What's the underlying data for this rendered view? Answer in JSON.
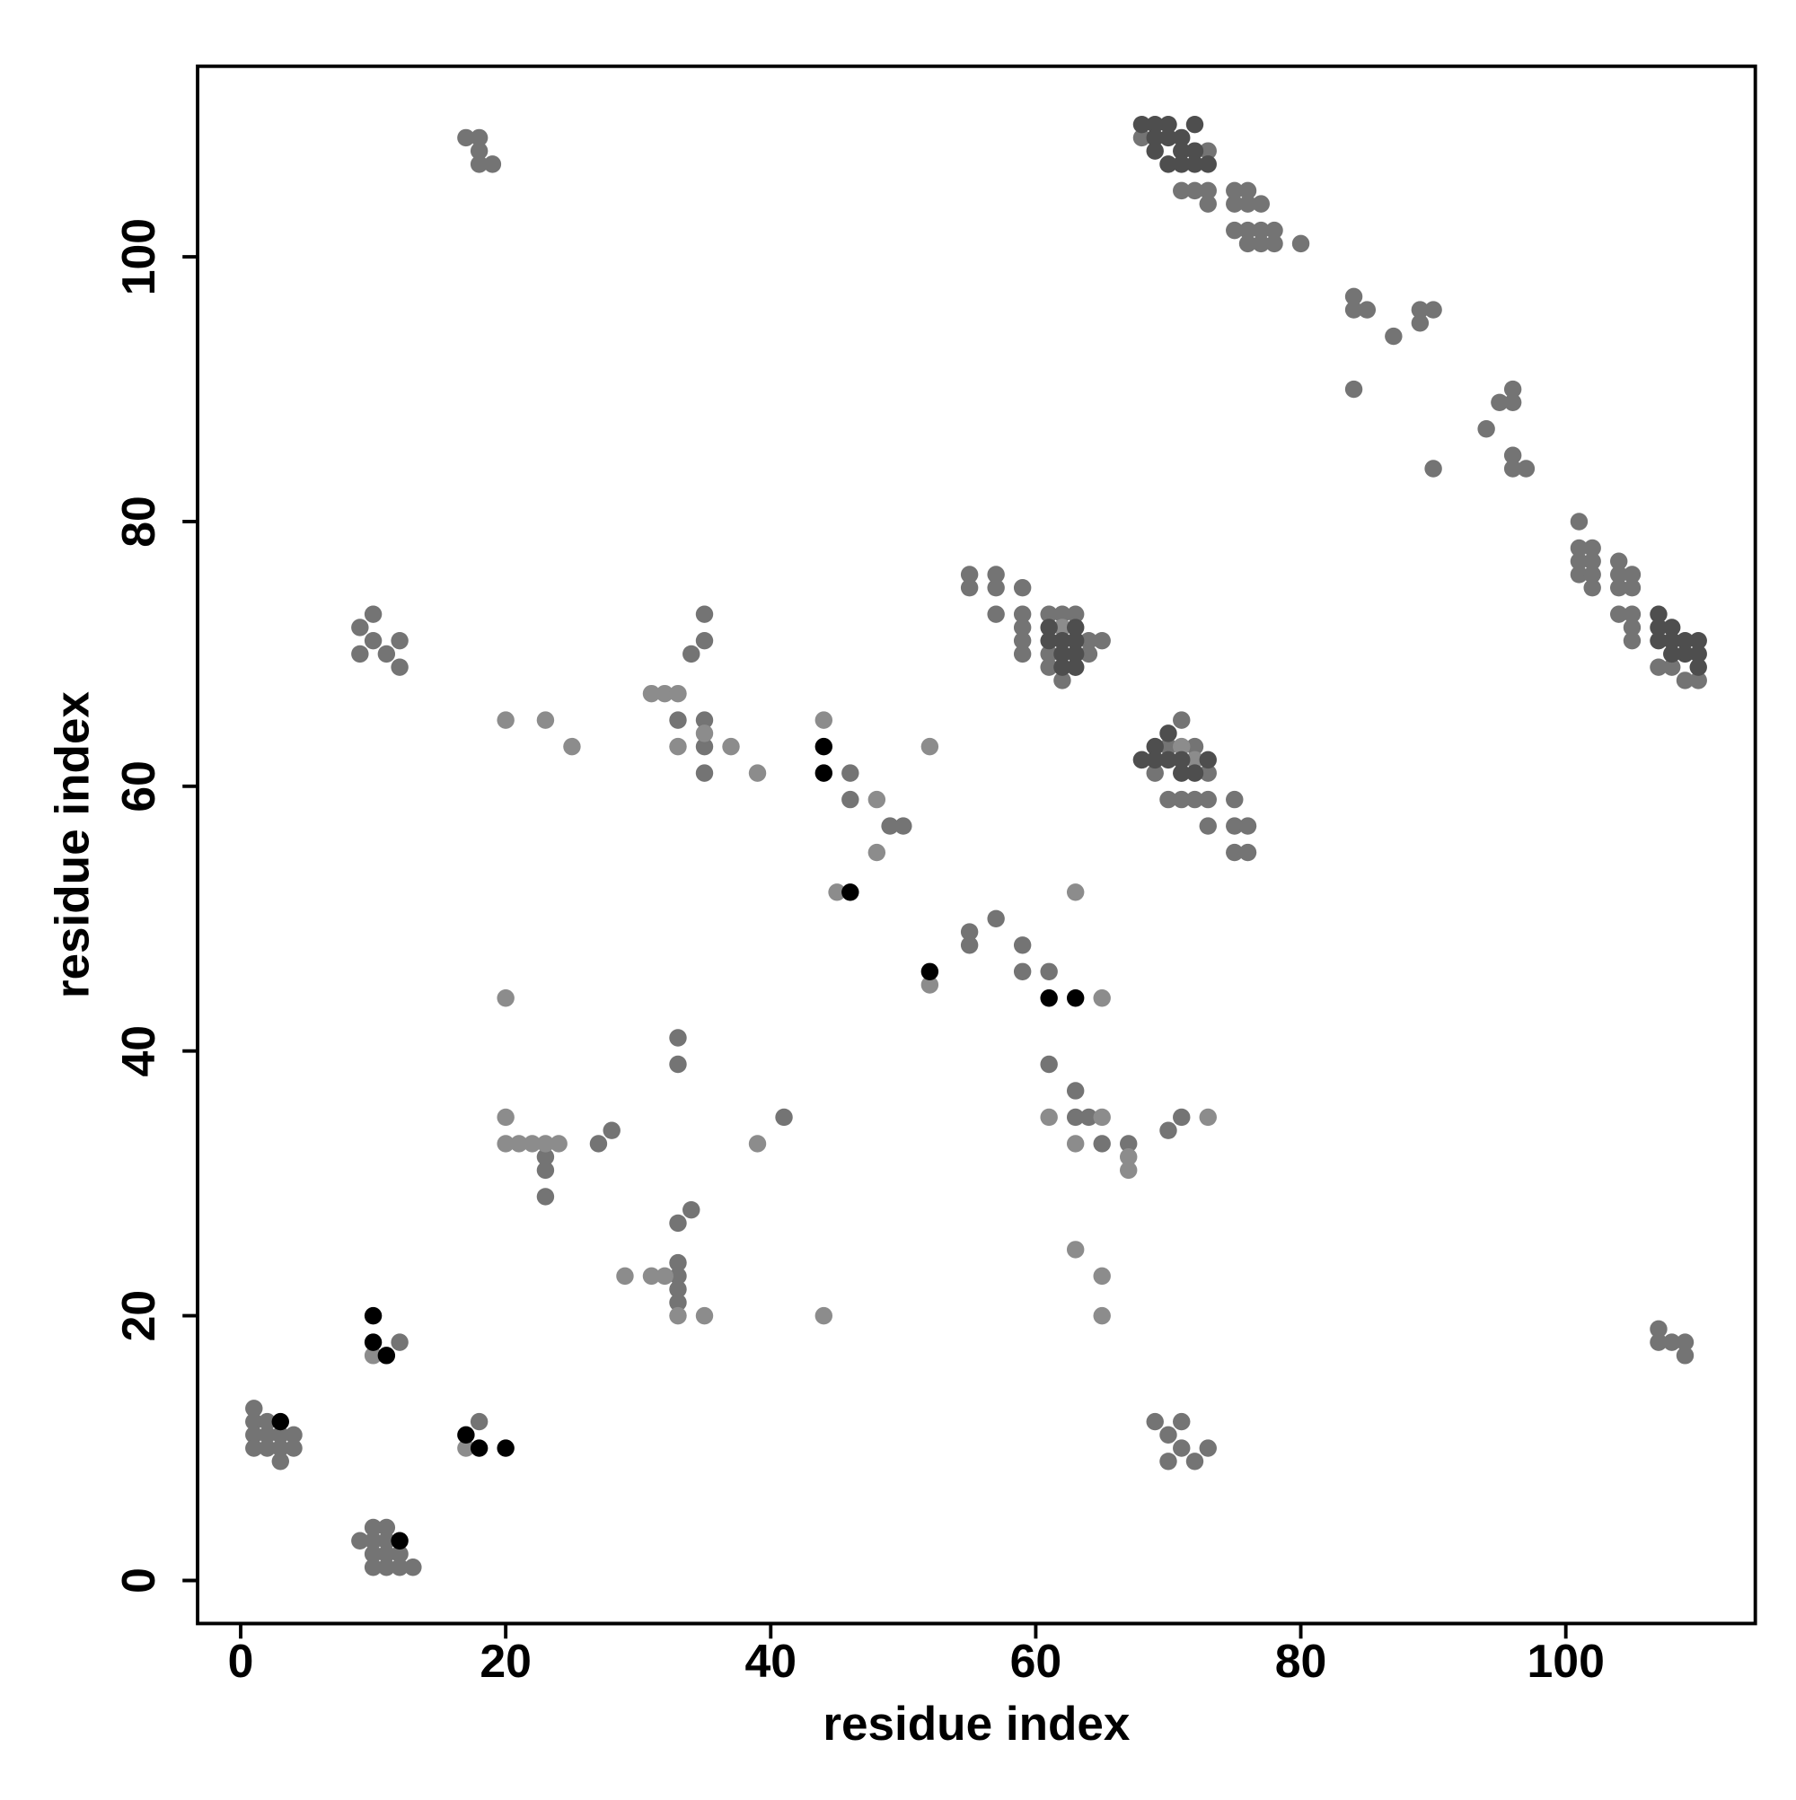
{
  "chart_data": {
    "type": "scatter",
    "x_label": "residue index",
    "y_label": "residue index",
    "xlim": [
      -3.25,
      114.3
    ],
    "ylim": [
      -3.25,
      114.4
    ],
    "xticks": [
      0,
      20,
      40,
      60,
      80,
      100
    ],
    "yticks": [
      0,
      20,
      40,
      60,
      80,
      100
    ],
    "series": [
      {
        "color": "#747474",
        "x": [
          1,
          1,
          1,
          1,
          2,
          2,
          2,
          3,
          3,
          3,
          4,
          4,
          9,
          10,
          10,
          10,
          10,
          11,
          11,
          11,
          11,
          12,
          12,
          13,
          12,
          18,
          17,
          18,
          18,
          18,
          19,
          9,
          9,
          10,
          10,
          11,
          12,
          12,
          23,
          23,
          23,
          27,
          28,
          33,
          33,
          33,
          33,
          33,
          33,
          34,
          33,
          35,
          33,
          35,
          35,
          34,
          35,
          35,
          41,
          46,
          46,
          49,
          50,
          55,
          55,
          57,
          57,
          57,
          59,
          59,
          59,
          59,
          59,
          61,
          61,
          61,
          62,
          62,
          63,
          63,
          64,
          64,
          65,
          55,
          55,
          57,
          59,
          59,
          61,
          61,
          63,
          63,
          64,
          65,
          67,
          70,
          71,
          68,
          69,
          70,
          70,
          71,
          71,
          72,
          72,
          73,
          73,
          73,
          75,
          75,
          76,
          75,
          76,
          69,
          70,
          70,
          71,
          71,
          72,
          73,
          68,
          71,
          72,
          73,
          73,
          73,
          75,
          75,
          75,
          76,
          76,
          76,
          76,
          77,
          77,
          77,
          78,
          78,
          80,
          84,
          84,
          85,
          87,
          89,
          89,
          90,
          84,
          90,
          94,
          95,
          96,
          96,
          96,
          96,
          97,
          101,
          101,
          101,
          101,
          102,
          102,
          102,
          102,
          104,
          104,
          104,
          104,
          105,
          105,
          105,
          105,
          105,
          107,
          108,
          110,
          109,
          107,
          107,
          108,
          109,
          109
        ],
        "y": [
          13,
          12,
          11,
          10,
          12,
          11,
          10,
          11,
          10,
          9,
          11,
          10,
          3,
          4,
          3,
          2,
          1,
          4,
          3,
          2,
          1,
          2,
          1,
          1,
          18,
          12,
          109,
          109,
          108,
          107,
          107,
          72,
          70,
          73,
          71,
          70,
          71,
          69,
          32,
          31,
          29,
          33,
          34,
          24,
          23,
          22,
          21,
          27,
          39,
          28,
          41,
          65,
          65,
          63,
          61,
          70,
          71,
          73,
          35,
          61,
          59,
          57,
          57,
          76,
          75,
          76,
          75,
          73,
          75,
          73,
          72,
          71,
          70,
          73,
          70,
          69,
          73,
          68,
          73,
          69,
          71,
          70,
          71,
          49,
          48,
          50,
          48,
          46,
          46,
          39,
          37,
          35,
          35,
          33,
          33,
          34,
          35,
          62,
          61,
          59,
          63,
          59,
          65,
          59,
          63,
          59,
          61,
          57,
          59,
          57,
          57,
          55,
          55,
          12,
          11,
          9,
          12,
          10,
          9,
          10,
          109,
          105,
          105,
          105,
          104,
          108,
          105,
          104,
          102,
          105,
          104,
          102,
          101,
          104,
          102,
          101,
          102,
          101,
          101,
          97,
          96,
          96,
          94,
          96,
          95,
          96,
          90,
          84,
          87,
          89,
          90,
          89,
          85,
          84,
          84,
          80,
          78,
          77,
          76,
          78,
          77,
          76,
          75,
          77,
          76,
          75,
          73,
          76,
          75,
          73,
          72,
          71,
          69,
          69,
          68,
          68,
          19,
          18,
          18,
          18,
          17
        ]
      },
      {
        "color": "#8c8c8c",
        "x": [
          10,
          17,
          45,
          52,
          20,
          23,
          25,
          20,
          20,
          20,
          21,
          22,
          23,
          24,
          29,
          31,
          32,
          31,
          32,
          33,
          33,
          35,
          37,
          39,
          44,
          44,
          52,
          63,
          65,
          39,
          35,
          33,
          61,
          63,
          65,
          67,
          67,
          73,
          63,
          65,
          65,
          48,
          48,
          62,
          63,
          71,
          72
        ],
        "y": [
          17,
          10,
          52,
          45,
          65,
          65,
          63,
          44,
          35,
          33,
          33,
          33,
          33,
          33,
          23,
          23,
          23,
          67,
          67,
          67,
          63,
          64,
          63,
          61,
          65,
          20,
          63,
          52,
          44,
          33,
          20,
          20,
          35,
          33,
          35,
          32,
          31,
          35,
          25,
          23,
          20,
          59,
          55,
          72,
          72,
          63,
          62
        ]
      },
      {
        "color": "#4e4e4e",
        "x": [
          68,
          69,
          69,
          69,
          70,
          70,
          70,
          71,
          71,
          71,
          72,
          72,
          72,
          73,
          61,
          61,
          62,
          62,
          63,
          63,
          63,
          68,
          69,
          69,
          70,
          70,
          71,
          71,
          72,
          73,
          107,
          107,
          107,
          108,
          108,
          108,
          109,
          109,
          110,
          110,
          110,
          62,
          63
        ],
        "y": [
          110,
          110,
          109,
          108,
          110,
          109,
          107,
          108,
          107,
          109,
          110,
          108,
          107,
          107,
          72,
          71,
          71,
          70,
          71,
          70,
          72,
          62,
          63,
          62,
          64,
          62,
          62,
          61,
          61,
          62,
          73,
          72,
          71,
          72,
          71,
          70,
          71,
          70,
          71,
          70,
          69,
          69,
          69
        ]
      },
      {
        "color": "#000000",
        "x": [
          3,
          12,
          10,
          10,
          11,
          17,
          18,
          20,
          44,
          44,
          46,
          52,
          61,
          63
        ],
        "y": [
          12,
          3,
          20,
          18,
          17,
          11,
          10,
          10,
          63,
          61,
          52,
          46,
          44,
          44
        ]
      }
    ]
  }
}
